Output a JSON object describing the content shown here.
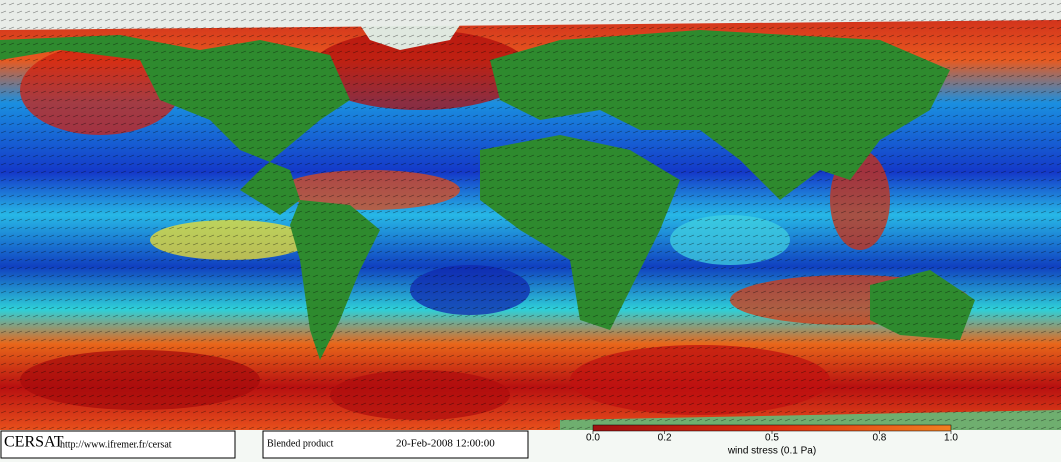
{
  "footer": {
    "logo": "CERSAT",
    "url": "http://www.ifremer.fr/cersat",
    "product": "Blended product",
    "date": "20-Feb-2008 12:00:00"
  },
  "colorbar": {
    "label": "wind stress (0.1 Pa)",
    "lim": [
      0,
      1
    ],
    "ticks": [
      {
        "value": 0,
        "label": "0.0"
      },
      0.2,
      0.5,
      0.8,
      {
        "value": 1,
        "label": "1.0"
      }
    ]
  }
}
